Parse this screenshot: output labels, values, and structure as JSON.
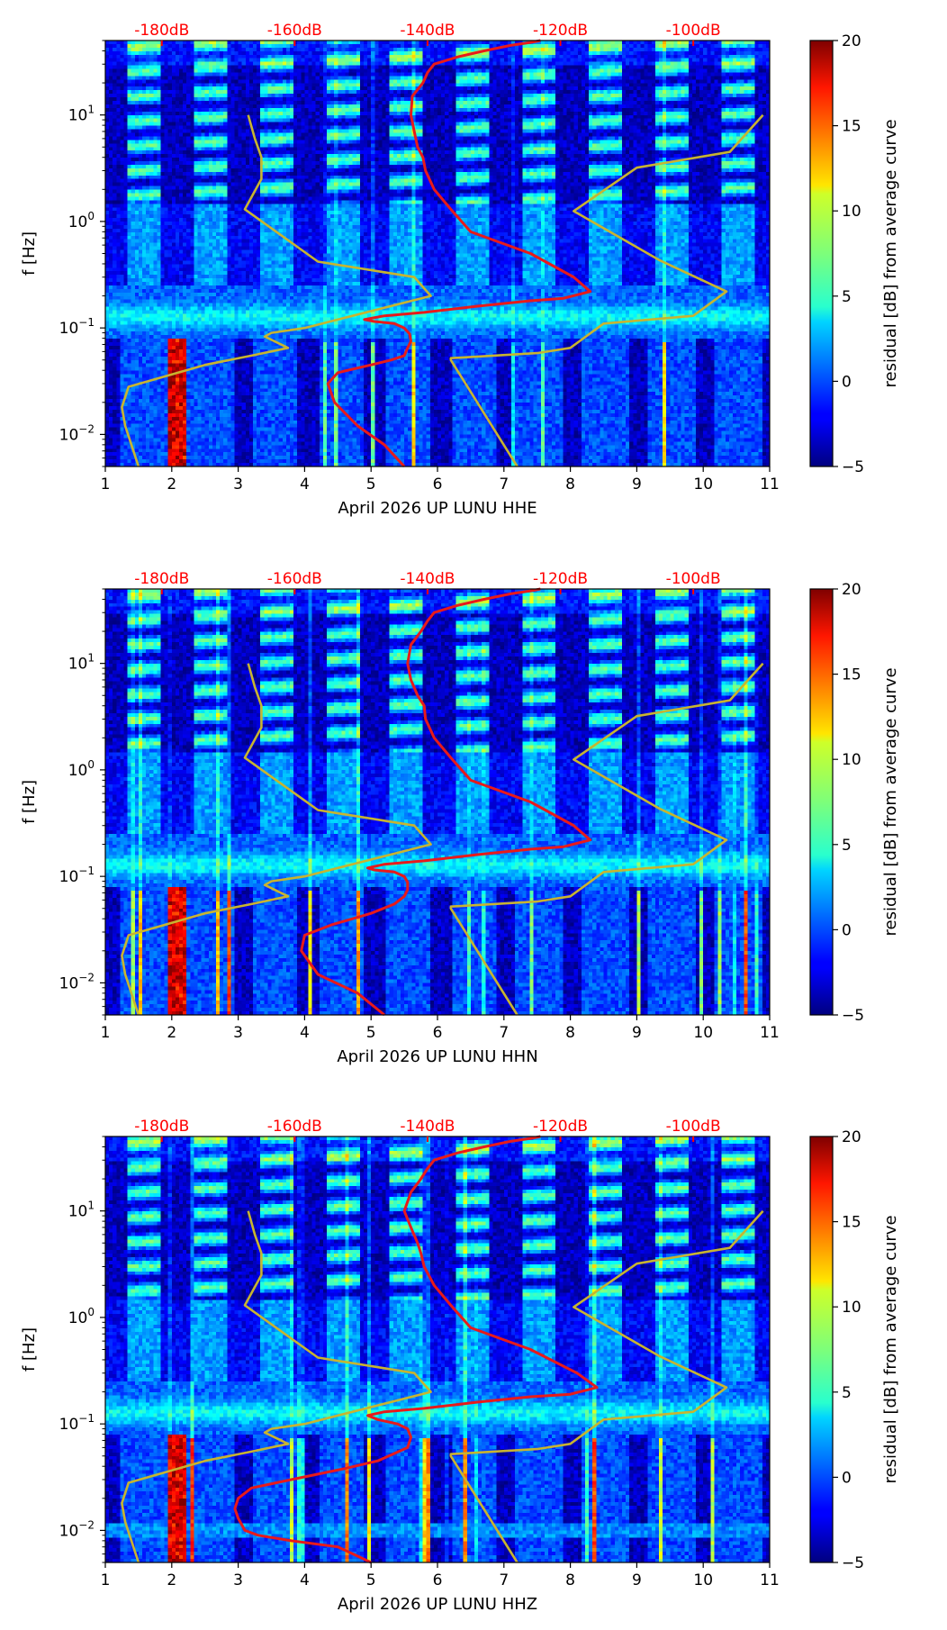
{
  "chart_data": [
    {
      "type": "heatmap",
      "title": "",
      "xlabel": "April 2026 UP LUNU  HHE",
      "ylabel": "f [Hz]",
      "xlim": [
        1,
        11
      ],
      "ylim": [
        0.005,
        50
      ],
      "yscale": "log",
      "xticks": [
        "1",
        "2",
        "3",
        "4",
        "5",
        "6",
        "7",
        "8",
        "9",
        "10",
        "11"
      ],
      "ytick_labels": [
        {
          "base": "10",
          "exp": "1"
        },
        {
          "base": "10",
          "exp": "0"
        },
        {
          "base": "10",
          "exp": "−1"
        },
        {
          "base": "10",
          "exp": "−2"
        }
      ],
      "top_axis_labels": [
        "-180dB",
        "-160dB",
        "-140dB",
        "-120dB",
        "-100dB"
      ],
      "colorbar": {
        "label": "residual [dB] from average curve",
        "ticks": [
          "20",
          "15",
          "10",
          "5",
          "0",
          "−5"
        ],
        "range": [
          -5,
          20
        ],
        "colormap": "jet"
      },
      "series": [
        {
          "name": "average PSD curve",
          "color": "#e81a1a",
          "x": [
            5.5,
            5.2,
            4.8,
            4.45,
            4.35,
            4.5,
            5.0,
            5.3,
            5.5,
            5.55,
            5.6,
            5.58,
            5.5,
            5.35,
            5.05,
            4.9,
            5.2,
            5.8,
            6.6,
            7.4,
            7.9,
            8.3,
            8.05,
            7.4,
            6.5,
            6.2,
            5.95,
            5.82,
            5.78,
            5.7,
            5.65,
            5.6,
            5.62,
            5.78,
            5.85,
            5.95,
            6.3,
            6.7,
            7.1,
            7.4,
            7.55
          ],
          "y": [
            0.005,
            0.008,
            0.012,
            0.02,
            0.03,
            0.038,
            0.045,
            0.05,
            0.055,
            0.065,
            0.075,
            0.088,
            0.1,
            0.11,
            0.115,
            0.12,
            0.13,
            0.14,
            0.16,
            0.18,
            0.19,
            0.22,
            0.3,
            0.5,
            0.8,
            1.3,
            2,
            3,
            4,
            5,
            7,
            10,
            15,
            20,
            25,
            30,
            35,
            40,
            45,
            48,
            50
          ]
        },
        {
          "name": "model curve A",
          "color": "#c8b430",
          "x": [
            1.5,
            1.3,
            1.25,
            1.35,
            2.5,
            3.2,
            3.75,
            3.4,
            3.5,
            4.0,
            5.9,
            5.65,
            4.2,
            3.1,
            3.35,
            3.35,
            3.25,
            3.15
          ],
          "y": [
            0.005,
            0.012,
            0.018,
            0.028,
            0.045,
            0.055,
            0.065,
            0.083,
            0.09,
            0.1,
            0.2,
            0.3,
            0.42,
            1.3,
            2.5,
            4,
            6,
            10
          ]
        },
        {
          "name": "model curve B",
          "color": "#c8b430",
          "x": [
            7.2,
            6.2,
            6.2,
            7.5,
            8.0,
            8.5,
            9.85,
            10.35,
            9.35,
            8.05,
            9.0,
            10.4,
            10.9
          ],
          "y": [
            0.005,
            0.05,
            0.052,
            0.058,
            0.065,
            0.11,
            0.13,
            0.22,
            0.43,
            1.25,
            3.2,
            4.5,
            10
          ]
        }
      ]
    },
    {
      "type": "heatmap",
      "title": "",
      "xlabel": "April 2026 UP LUNU  HHN",
      "ylabel": "f [Hz]",
      "xlim": [
        1,
        11
      ],
      "ylim": [
        0.005,
        50
      ],
      "yscale": "log",
      "xticks": [
        "1",
        "2",
        "3",
        "4",
        "5",
        "6",
        "7",
        "8",
        "9",
        "10",
        "11"
      ],
      "ytick_labels": [
        {
          "base": "10",
          "exp": "1"
        },
        {
          "base": "10",
          "exp": "0"
        },
        {
          "base": "10",
          "exp": "−1"
        },
        {
          "base": "10",
          "exp": "−2"
        }
      ],
      "top_axis_labels": [
        "-180dB",
        "-160dB",
        "-140dB",
        "-120dB",
        "-100dB"
      ],
      "colorbar": {
        "label": "residual [dB] from average curve",
        "ticks": [
          "20",
          "15",
          "10",
          "5",
          "0",
          "−5"
        ],
        "range": [
          -5,
          20
        ],
        "colormap": "jet"
      },
      "series": [
        {
          "name": "average PSD curve",
          "color": "#e81a1a",
          "x": [
            5.2,
            4.8,
            4.2,
            3.95,
            4.0,
            4.4,
            5.0,
            5.35,
            5.5,
            5.55,
            5.55,
            5.5,
            5.35,
            5.05,
            4.95,
            5.2,
            5.8,
            6.6,
            7.4,
            7.9,
            8.3,
            8.05,
            7.4,
            6.5,
            6.2,
            5.95,
            5.82,
            5.8,
            5.7,
            5.6,
            5.55,
            5.6,
            5.75,
            5.85,
            5.95,
            6.3,
            6.7,
            7.1,
            7.4,
            7.55
          ],
          "y": [
            0.005,
            0.008,
            0.012,
            0.02,
            0.028,
            0.035,
            0.045,
            0.055,
            0.065,
            0.075,
            0.088,
            0.1,
            0.11,
            0.115,
            0.12,
            0.13,
            0.14,
            0.16,
            0.18,
            0.19,
            0.22,
            0.3,
            0.5,
            0.8,
            1.3,
            2,
            3,
            4,
            5,
            7,
            10,
            15,
            20,
            25,
            30,
            35,
            40,
            45,
            48,
            50
          ]
        },
        {
          "name": "model curve A",
          "color": "#c8b430",
          "x": [
            1.5,
            1.3,
            1.25,
            1.35,
            2.5,
            3.2,
            3.75,
            3.4,
            3.5,
            4.0,
            5.9,
            5.65,
            4.2,
            3.1,
            3.35,
            3.35,
            3.25,
            3.15
          ],
          "y": [
            0.005,
            0.012,
            0.018,
            0.028,
            0.045,
            0.055,
            0.065,
            0.083,
            0.09,
            0.1,
            0.2,
            0.3,
            0.42,
            1.3,
            2.5,
            4,
            6,
            10
          ]
        },
        {
          "name": "model curve B",
          "color": "#c8b430",
          "x": [
            7.2,
            6.2,
            6.2,
            7.5,
            8.0,
            8.5,
            9.85,
            10.35,
            9.35,
            8.05,
            9.0,
            10.4,
            10.9
          ],
          "y": [
            0.005,
            0.05,
            0.052,
            0.058,
            0.065,
            0.11,
            0.13,
            0.22,
            0.43,
            1.25,
            3.2,
            4.5,
            10
          ]
        }
      ]
    },
    {
      "type": "heatmap",
      "title": "",
      "xlabel": "April 2026 UP LUNU  HHZ",
      "ylabel": "f [Hz]",
      "xlim": [
        1,
        11
      ],
      "ylim": [
        0.005,
        50
      ],
      "yscale": "log",
      "xticks": [
        "1",
        "2",
        "3",
        "4",
        "5",
        "6",
        "7",
        "8",
        "9",
        "10",
        "11"
      ],
      "ytick_labels": [
        {
          "base": "10",
          "exp": "1"
        },
        {
          "base": "10",
          "exp": "0"
        },
        {
          "base": "10",
          "exp": "−1"
        },
        {
          "base": "10",
          "exp": "−2"
        }
      ],
      "top_axis_labels": [
        "-180dB",
        "-160dB",
        "-140dB",
        "-120dB",
        "-100dB"
      ],
      "colorbar": {
        "label": "residual [dB] from average curve",
        "ticks": [
          "20",
          "15",
          "10",
          "5",
          "0",
          "−5"
        ],
        "range": [
          -5,
          20
        ],
        "colormap": "jet"
      },
      "series": [
        {
          "name": "average PSD curve",
          "color": "#e81a1a",
          "x": [
            5.0,
            4.5,
            3.8,
            3.3,
            3.1,
            3.0,
            2.95,
            3.0,
            3.2,
            3.8,
            4.6,
            5.1,
            5.55,
            5.6,
            5.55,
            5.4,
            5.1,
            4.95,
            5.2,
            5.8,
            6.6,
            7.4,
            8.0,
            8.4,
            8.1,
            7.4,
            6.5,
            6.2,
            5.95,
            5.8,
            5.75,
            5.7,
            5.6,
            5.5,
            5.6,
            5.75,
            5.85,
            5.95,
            6.3,
            6.7,
            7.1,
            7.4,
            7.55
          ],
          "y": [
            0.005,
            0.007,
            0.008,
            0.009,
            0.01,
            0.013,
            0.016,
            0.02,
            0.025,
            0.03,
            0.038,
            0.045,
            0.06,
            0.075,
            0.09,
            0.1,
            0.11,
            0.12,
            0.13,
            0.14,
            0.16,
            0.18,
            0.19,
            0.22,
            0.3,
            0.5,
            0.8,
            1.3,
            2,
            3,
            4,
            5,
            7,
            10,
            15,
            20,
            25,
            30,
            35,
            40,
            45,
            48,
            50
          ]
        },
        {
          "name": "model curve A",
          "color": "#c8b430",
          "x": [
            1.5,
            1.3,
            1.25,
            1.35,
            2.5,
            3.2,
            3.75,
            3.4,
            3.5,
            4.0,
            5.9,
            5.65,
            4.2,
            3.1,
            3.35,
            3.35,
            3.25,
            3.15
          ],
          "y": [
            0.005,
            0.012,
            0.018,
            0.028,
            0.045,
            0.055,
            0.065,
            0.083,
            0.09,
            0.1,
            0.2,
            0.3,
            0.42,
            1.3,
            2.5,
            4,
            6,
            10
          ]
        },
        {
          "name": "model curve B",
          "color": "#c8b430",
          "x": [
            7.2,
            6.2,
            6.2,
            7.5,
            8.0,
            8.5,
            9.85,
            10.35,
            9.35,
            8.05,
            9.0,
            10.4,
            10.9
          ],
          "y": [
            0.005,
            0.05,
            0.052,
            0.058,
            0.065,
            0.11,
            0.13,
            0.22,
            0.43,
            1.25,
            3.2,
            4.5,
            10
          ]
        }
      ]
    }
  ]
}
